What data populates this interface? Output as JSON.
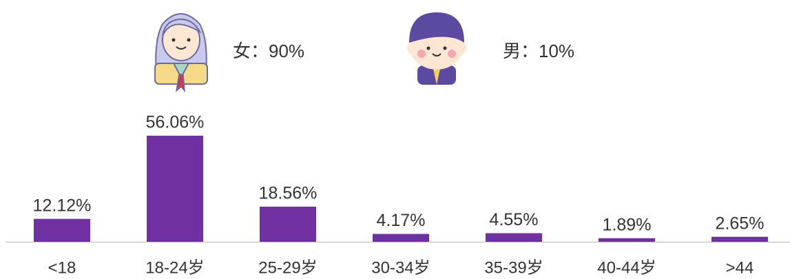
{
  "gender": {
    "female": "女：90%",
    "male": "男：10%"
  },
  "chart_data": {
    "type": "bar",
    "categories": [
      "<18",
      "18-24岁",
      "25-29岁",
      "30-34岁",
      "35-39岁",
      "40-44岁",
      ">44"
    ],
    "values": [
      12.12,
      56.06,
      18.56,
      4.17,
      4.55,
      1.89,
      2.65
    ],
    "value_labels": [
      "12.12%",
      "56.06%",
      "18.56%",
      "4.17%",
      "4.55%",
      "1.89%",
      "2.65%"
    ],
    "color": "#7030a0"
  }
}
